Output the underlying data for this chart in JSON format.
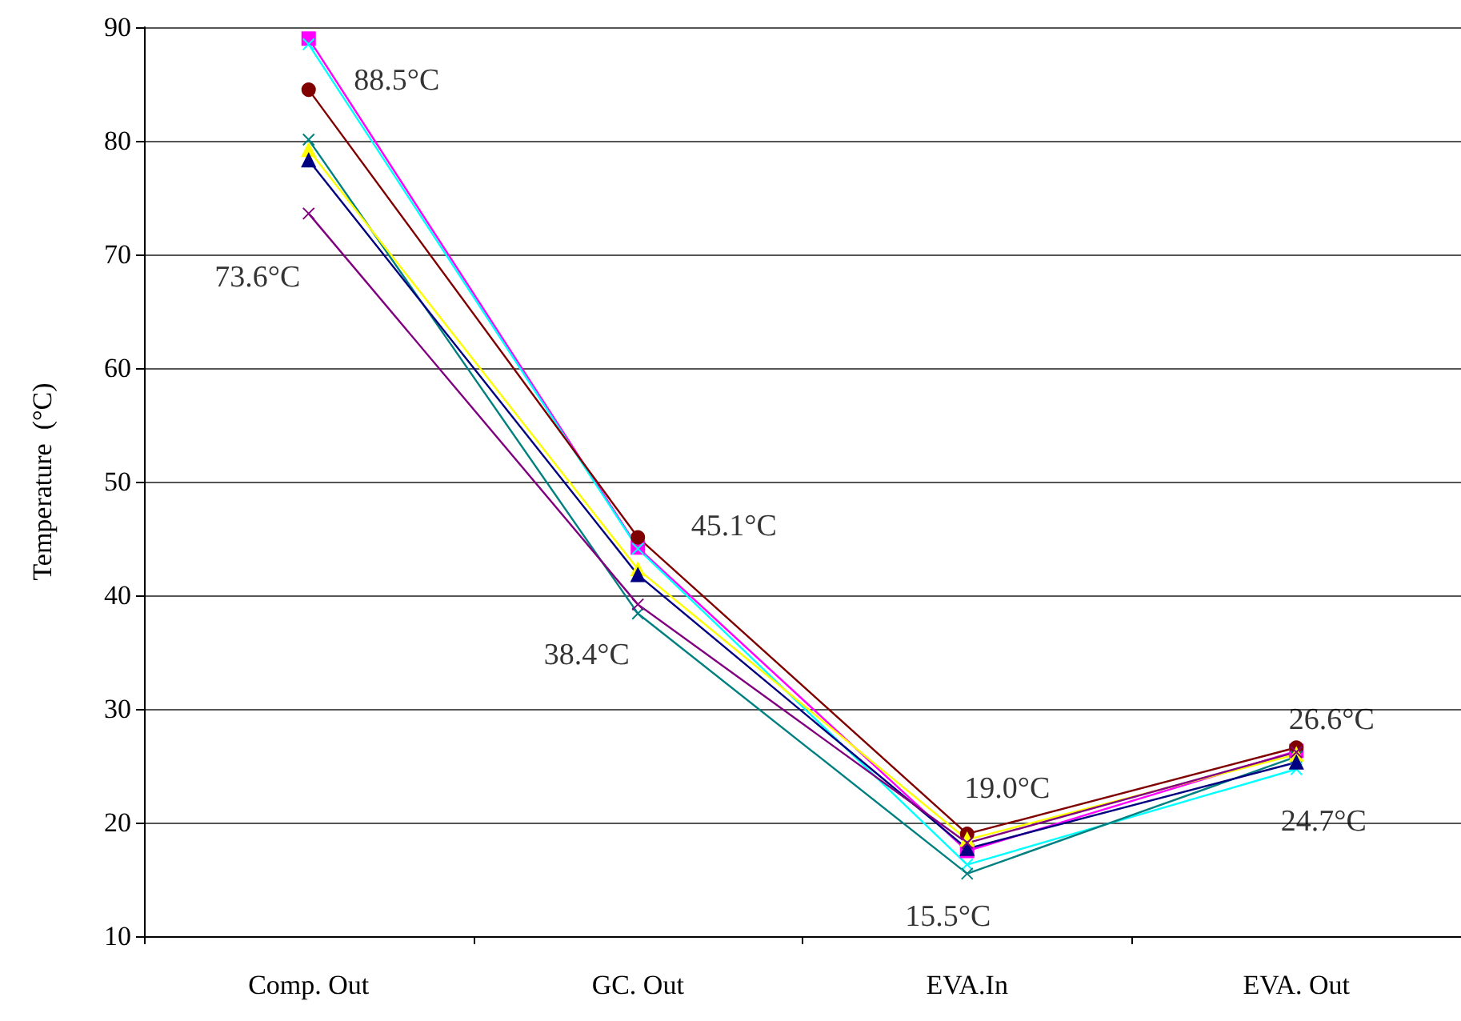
{
  "chart_data": {
    "type": "line",
    "ylabel": "Temperature  (°C)",
    "categories": [
      "Comp. Out",
      "GC. Out",
      "EVA.In",
      "EVA. Out"
    ],
    "ylim": [
      10,
      90
    ],
    "yticks": [
      10,
      20,
      30,
      40,
      50,
      60,
      70,
      80,
      90
    ],
    "grid": "y",
    "series": [
      {
        "color": "#ff00ff",
        "marker": "square",
        "values": [
          89.0,
          44.2,
          17.5,
          26.3
        ]
      },
      {
        "color": "#00ffff",
        "marker": "cross",
        "values": [
          88.5,
          44.1,
          16.3,
          24.7
        ]
      },
      {
        "color": "#800000",
        "marker": "circle",
        "values": [
          84.5,
          45.1,
          19.0,
          26.6
        ]
      },
      {
        "color": "#008080",
        "marker": "cross",
        "values": [
          80.1,
          38.4,
          15.5,
          25.8
        ]
      },
      {
        "color": "#ffff00",
        "marker": "triangle",
        "values": [
          79.2,
          42.3,
          18.5,
          26.0
        ]
      },
      {
        "color": "#000080",
        "marker": "triangle",
        "values": [
          78.3,
          41.8,
          17.7,
          25.3
        ]
      },
      {
        "color": "#800080",
        "marker": "cross",
        "values": [
          73.6,
          39.2,
          18.2,
          26.2
        ]
      }
    ],
    "annotations": [
      {
        "text": "88.5°C",
        "x": "Comp. Out",
        "y": 88.5
      },
      {
        "text": "73.6°C",
        "x": "Comp. Out",
        "y": 73.6
      },
      {
        "text": "45.1°C",
        "x": "GC. Out",
        "y": 45.1
      },
      {
        "text": "38.4°C",
        "x": "GC. Out",
        "y": 38.4
      },
      {
        "text": "19.0°C",
        "x": "EVA.In",
        "y": 19.0
      },
      {
        "text": "15.5°C",
        "x": "EVA.In",
        "y": 15.5
      },
      {
        "text": "26.6°C",
        "x": "EVA. Out",
        "y": 26.6
      },
      {
        "text": "24.7°C",
        "x": "EVA. Out",
        "y": 24.7
      }
    ]
  }
}
